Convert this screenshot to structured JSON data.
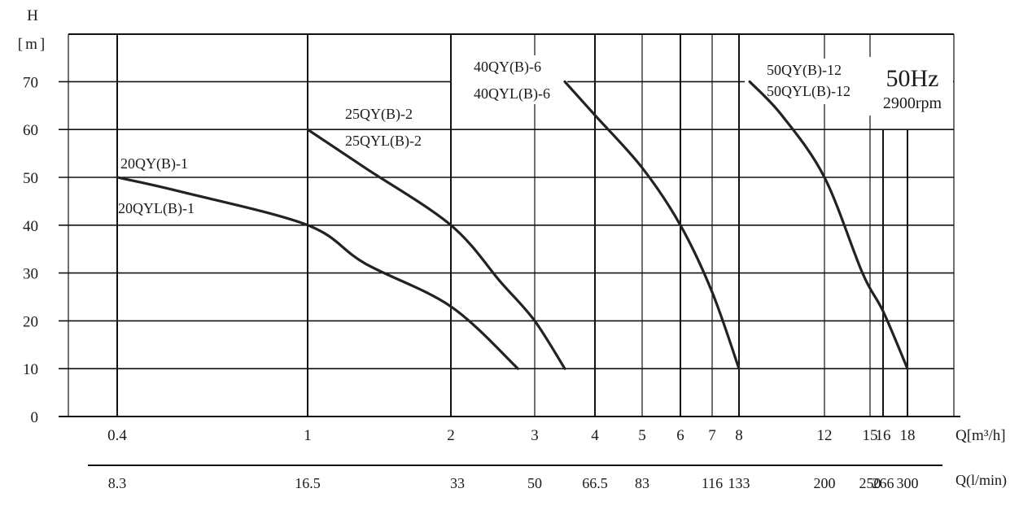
{
  "chart_data": {
    "type": "line",
    "title": "",
    "annotation": {
      "frequency": "50Hz",
      "speed": "2900rpm"
    },
    "ylabel": {
      "symbol": "H",
      "unit": "[m]"
    },
    "xlabel": {
      "primary": "Q[m³/h]",
      "secondary": "Q(l/min)"
    },
    "ylim": [
      0,
      80
    ],
    "yticks": [
      0,
      10,
      20,
      30,
      40,
      50,
      60,
      70
    ],
    "x_ticks": [
      {
        "value": 0.4,
        "label": "0.4",
        "lpm": "8.3"
      },
      {
        "value": 1,
        "label": "1",
        "lpm": "16.5"
      },
      {
        "value": 2,
        "label": "2",
        "lpm": "33"
      },
      {
        "value": 3,
        "label": "3",
        "lpm": "50"
      },
      {
        "value": 4,
        "label": "4",
        "lpm": "66.5"
      },
      {
        "value": 5,
        "label": "5",
        "lpm": "83"
      },
      {
        "value": 6,
        "label": "6",
        "lpm": ""
      },
      {
        "value": 7,
        "label": "7",
        "lpm": "116"
      },
      {
        "value": 8,
        "label": "8",
        "lpm": "133"
      },
      {
        "value": 12,
        "label": "12",
        "lpm": "200"
      },
      {
        "value": 15,
        "label": "15",
        "lpm": "250"
      },
      {
        "value": 16,
        "label": "16",
        "lpm": "266"
      },
      {
        "value": 18,
        "label": "18",
        "lpm": "300"
      }
    ],
    "series": [
      {
        "name": "20QY(B)-1",
        "alt_name": "20QYL(B)-1",
        "points": [
          [
            0.4,
            50
          ],
          [
            0.6,
            47
          ],
          [
            1.0,
            40
          ],
          [
            1.4,
            32
          ],
          [
            2.0,
            23
          ],
          [
            2.8,
            10
          ]
        ]
      },
      {
        "name": "25QY(B)-2",
        "alt_name": "25QYL(B)-2",
        "points": [
          [
            1.0,
            60
          ],
          [
            1.4,
            52
          ],
          [
            2.0,
            40
          ],
          [
            2.6,
            28
          ],
          [
            3.0,
            20
          ],
          [
            3.5,
            10
          ]
        ]
      },
      {
        "name": "40QY(B)-6",
        "alt_name": "40QYL(B)-6",
        "points": [
          [
            3.5,
            70
          ],
          [
            4.0,
            63
          ],
          [
            5.0,
            52
          ],
          [
            6.0,
            40
          ],
          [
            7.0,
            26
          ],
          [
            8.0,
            10
          ]
        ]
      },
      {
        "name": "50QY(B)-12",
        "alt_name": "50QYL(B)-12",
        "points": [
          [
            8.5,
            70
          ],
          [
            10.0,
            63
          ],
          [
            12.0,
            50
          ],
          [
            14.5,
            30
          ],
          [
            16.0,
            22
          ],
          [
            18.0,
            10
          ]
        ]
      }
    ]
  }
}
